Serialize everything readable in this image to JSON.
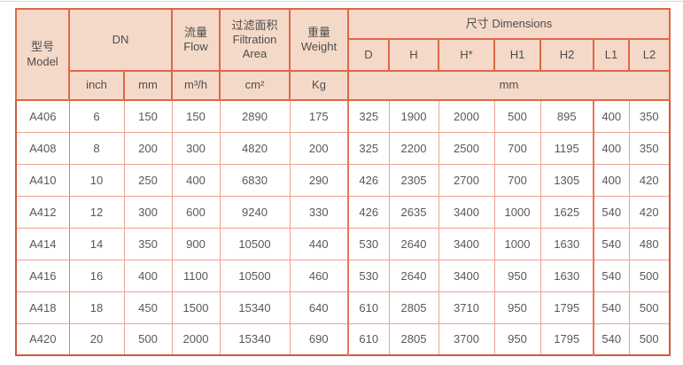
{
  "colors": {
    "header_bg": "#f5d9c8",
    "header_border": "#de6848",
    "outer_border": "#d05a3a",
    "body_border": "#f0a293",
    "text": "#58585a"
  },
  "table": {
    "header": {
      "model": "型号\nModel",
      "dn": "DN",
      "flow": "流量\nFlow",
      "filtration_area": "过滤面积\nFiltration\nArea",
      "weight": "重量\nWeight",
      "dimensions": "尺寸 Dimensions",
      "dim_cols": [
        "D",
        "H",
        "H*",
        "H1",
        "H2",
        "L1",
        "L2"
      ],
      "units": {
        "inch": "inch",
        "mm": "mm",
        "flow": "m³/h",
        "area": "cm²",
        "weight": "Kg",
        "dims": "mm"
      }
    },
    "rows": [
      [
        "A406",
        "6",
        "150",
        "150",
        "2890",
        "175",
        "325",
        "1900",
        "2000",
        "500",
        "895",
        "400",
        "350"
      ],
      [
        "A408",
        "8",
        "200",
        "300",
        "4820",
        "200",
        "325",
        "2200",
        "2500",
        "700",
        "1195",
        "400",
        "350"
      ],
      [
        "A410",
        "10",
        "250",
        "400",
        "6830",
        "290",
        "426",
        "2305",
        "2700",
        "700",
        "1305",
        "400",
        "420"
      ],
      [
        "A412",
        "12",
        "300",
        "600",
        "9240",
        "330",
        "426",
        "2635",
        "3400",
        "1000",
        "1625",
        "540",
        "420"
      ],
      [
        "A414",
        "14",
        "350",
        "900",
        "10500",
        "440",
        "530",
        "2640",
        "3400",
        "1000",
        "1630",
        "540",
        "480"
      ],
      [
        "A416",
        "16",
        "400",
        "1100",
        "10500",
        "460",
        "530",
        "2640",
        "3400",
        "950",
        "1630",
        "540",
        "500"
      ],
      [
        "A418",
        "18",
        "450",
        "1500",
        "15340",
        "640",
        "610",
        "2805",
        "3710",
        "950",
        "1795",
        "540",
        "500"
      ],
      [
        "A420",
        "20",
        "500",
        "2000",
        "15340",
        "690",
        "610",
        "2805",
        "3700",
        "950",
        "1795",
        "540",
        "500"
      ]
    ]
  }
}
